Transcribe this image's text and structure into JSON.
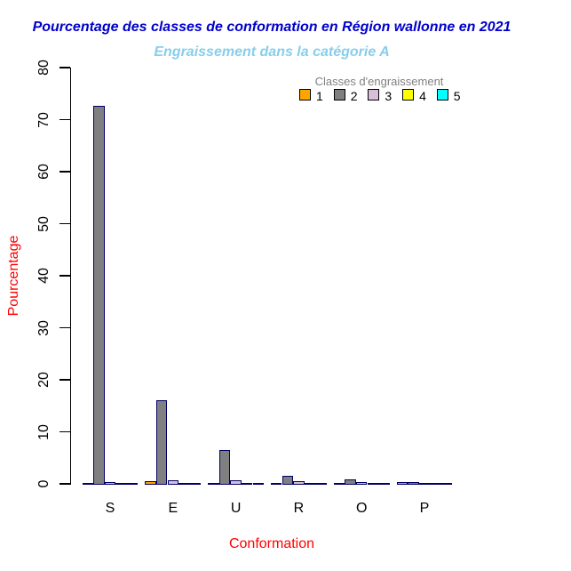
{
  "chart_data": {
    "type": "bar",
    "title": "Pourcentage des classes de conformation en Région wallonne en 2021",
    "subtitle": "Engraissement dans la catégorie A",
    "xlabel": "Conformation",
    "ylabel": "Pourcentage",
    "categories": [
      "S",
      "E",
      "U",
      "R",
      "O",
      "P"
    ],
    "series": [
      {
        "name": "1",
        "color": "#FFA500",
        "values": [
          0.1,
          0.32,
          0.05,
          0.03,
          0.03,
          0.12
        ]
      },
      {
        "name": "2",
        "color": "#808080",
        "values": [
          72.5,
          15.9,
          6.3,
          1.4,
          0.7,
          0.25
        ]
      },
      {
        "name": "3",
        "color": "#D8BFD8",
        "values": [
          0.25,
          0.55,
          0.5,
          0.3,
          0.12,
          0.08
        ]
      },
      {
        "name": "4",
        "color": "#FFFF00",
        "values": [
          0.04,
          0.05,
          0.04,
          0.03,
          0.02,
          0.02
        ]
      },
      {
        "name": "5",
        "color": "#00FFFF",
        "values": [
          0.02,
          0.03,
          0.02,
          0.02,
          0.01,
          0.01
        ]
      }
    ],
    "ylim": [
      0,
      80
    ],
    "ytick_step": 10,
    "grid": false,
    "legend_title": "Classes d'engraissement",
    "legend_position": "top-right",
    "colors": {
      "title": "#0000CC",
      "subtitle": "#87CEEB",
      "axis_label": "#FF0000",
      "bar_border": "#000066"
    }
  }
}
